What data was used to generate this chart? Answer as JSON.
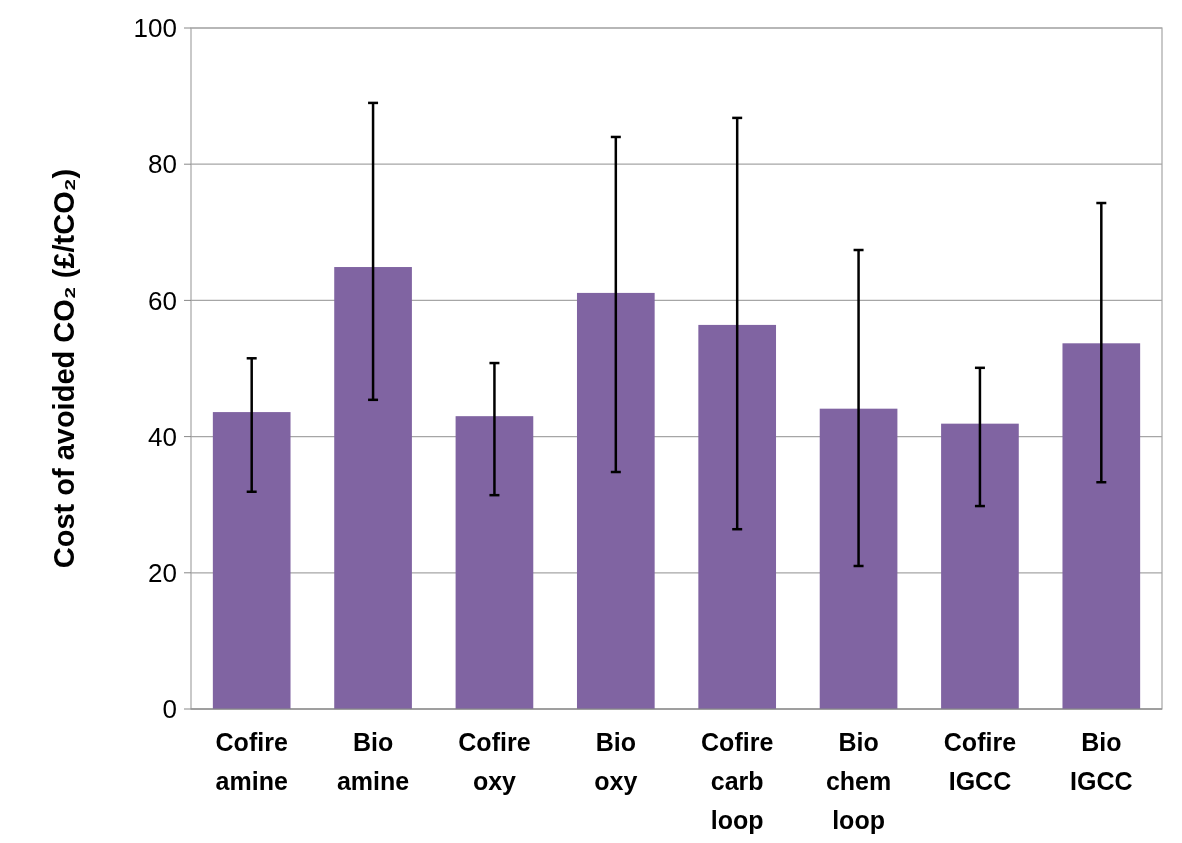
{
  "chart_data": {
    "type": "bar",
    "ylabel": "Cost of avoided CO₂ (£/tCO₂)",
    "categories": [
      "Cofire amine",
      "Bio amine",
      "Cofire oxy",
      "Bio oxy",
      "Cofire carb loop",
      "Bio chem loop",
      "Cofire IGCC",
      "Bio IGCC"
    ],
    "values": [
      43.6,
      64.9,
      43.0,
      61.1,
      56.4,
      44.1,
      41.9,
      53.7
    ],
    "errors": [
      [
        31.9,
        51.5
      ],
      [
        45.4,
        89.0
      ],
      [
        31.4,
        50.8
      ],
      [
        34.8,
        84.0
      ],
      [
        26.4,
        86.8
      ],
      [
        21.0,
        67.4
      ],
      [
        29.8,
        50.1
      ],
      [
        33.3,
        74.3
      ]
    ],
    "color": "#8064a2",
    "ylim": [
      0,
      100
    ],
    "yticks": [
      0,
      20,
      40,
      60,
      80,
      100
    ],
    "grid": "y"
  }
}
